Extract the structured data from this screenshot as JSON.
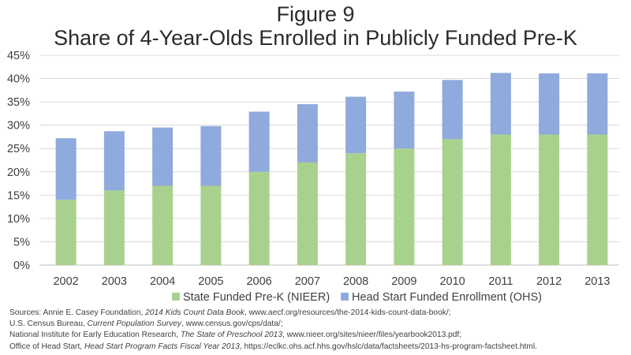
{
  "figure_label": "Figure 9",
  "chart_data": {
    "type": "bar",
    "stacked": true,
    "title": "Share of 4-Year-Olds Enrolled in Publicly Funded Pre-K",
    "categories": [
      "2002",
      "2003",
      "2004",
      "2005",
      "2006",
      "2007",
      "2008",
      "2009",
      "2010",
      "2011",
      "2012",
      "2013"
    ],
    "series": [
      {
        "name": "State Funded Pre-K (NIEER)",
        "color": "#a9d18e",
        "values": [
          14,
          16,
          17,
          17,
          20,
          22,
          24,
          25,
          27,
          28,
          28,
          28
        ]
      },
      {
        "name": "Head Start Funded Enrollment (OHS)",
        "color": "#8faadc",
        "values": [
          13.2,
          12.7,
          12.5,
          12.8,
          12.9,
          12.5,
          12.1,
          12.2,
          12.7,
          13.2,
          13.1,
          13.1
        ]
      }
    ],
    "yticks": [
      "0%",
      "5%",
      "10%",
      "15%",
      "20%",
      "25%",
      "30%",
      "35%",
      "40%",
      "45%"
    ],
    "ylim": [
      0,
      45
    ],
    "ylabel": "",
    "xlabel": "",
    "grid": true,
    "legend_position": "bottom"
  },
  "sources": [
    {
      "prefix": "Sources: Annie E. Casey Foundation, ",
      "italic": "2014 Kids Count Data Book",
      "suffix": ", www.aecf.org/resources/the-2014-kids-count-data-book/;"
    },
    {
      "prefix": "U.S. Census Bureau, ",
      "italic": "Current Population Survey",
      "suffix": ", www.census.gov/cps/data/;"
    },
    {
      "prefix": "National Institute for Early Education Research, ",
      "italic": "The State of Preschool 2013",
      "suffix": ", www.nieer.org/sites/nieer/files/yearbook2013.pdf;"
    },
    {
      "prefix": "Office of Head Start, ",
      "italic": "Head Start Program Facts Fiscal Year 2013",
      "suffix": ", https://eclkc.ohs.acf.hhs.gov/hslc/data/factsheets/2013-hs-program-factsheet.html."
    }
  ]
}
